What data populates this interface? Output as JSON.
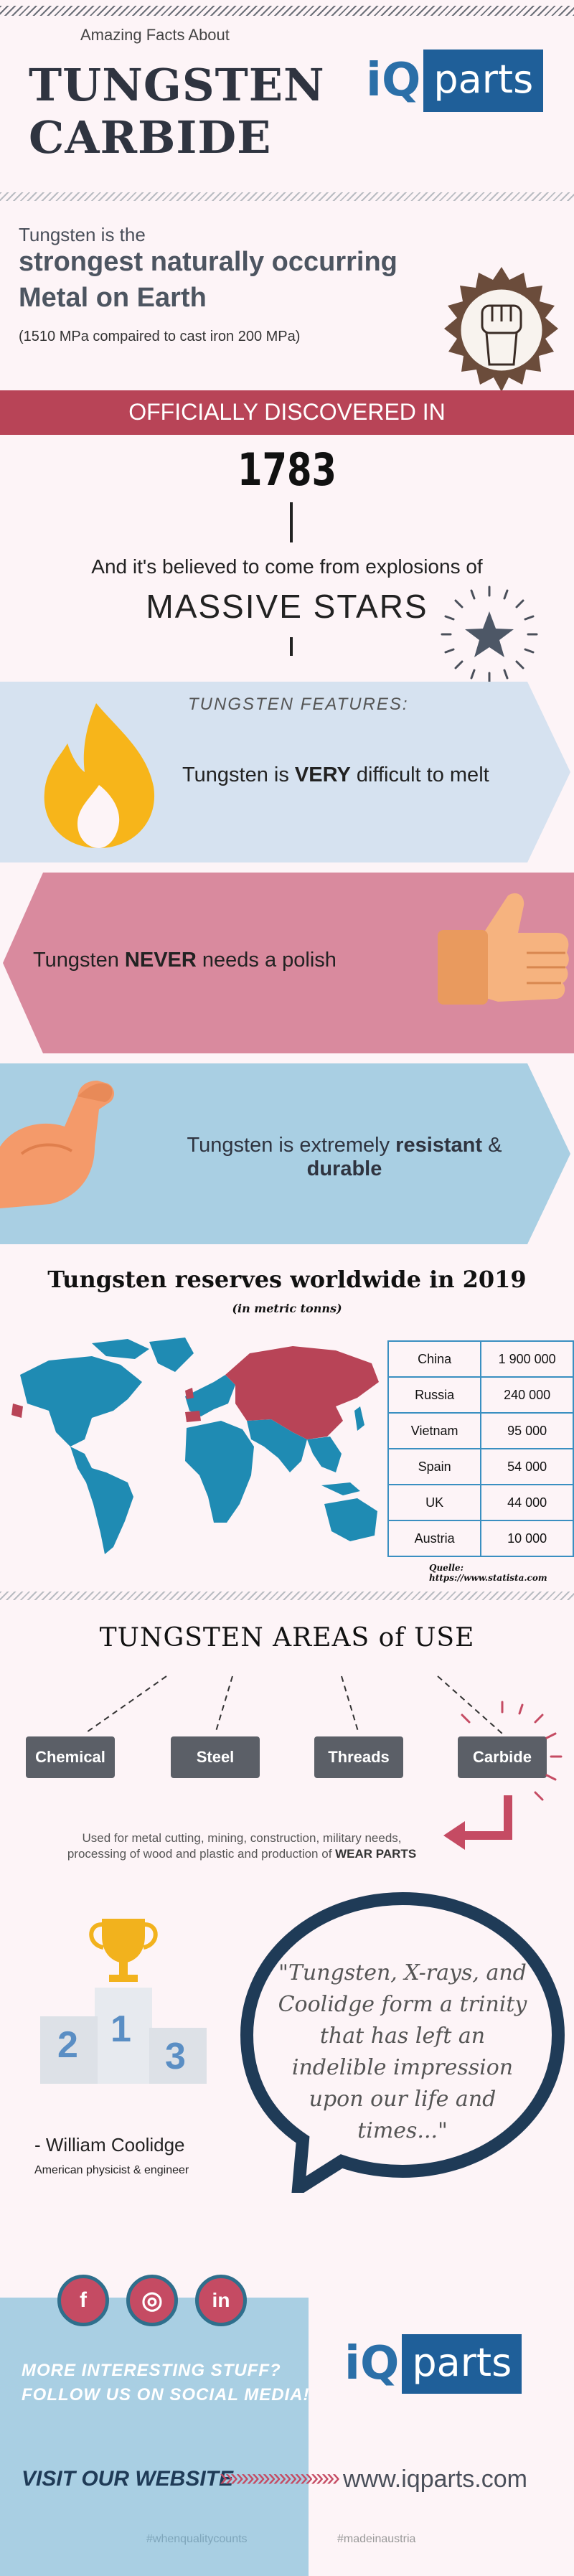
{
  "header": {
    "kicker": "Amazing Facts About",
    "title_line1": "TUNGSTEN",
    "title_line2": "CARBIDE"
  },
  "logo": {
    "iq": "iQ",
    "parts": "parts"
  },
  "strength": {
    "intro": "Tungsten is the",
    "headline1": "strongest naturally occurring",
    "headline2": "Metal on Earth",
    "note": "(1510 MPa compaired to cast iron 200 MPa)"
  },
  "discovery": {
    "banner": "OFFICIALLY DISCOVERED IN",
    "year": "1783",
    "origin_text": "And it's believed to come from explosions of",
    "origin_emphasis": "MASSIVE STARS"
  },
  "features": {
    "title": "TUNGSTEN FEATURES:",
    "f1_pre": "Tungsten is ",
    "f1_bold": "VERY",
    "f1_post": " difficult to melt",
    "f2_pre": "Tungsten ",
    "f2_bold": "NEVER",
    "f2_post": " needs a polish",
    "f3_pre": "Tungsten is extremely ",
    "f3_bold1": "resistant",
    "f3_mid": " &",
    "f3_bold2": "durable"
  },
  "reserves": {
    "title": "Tungsten reserves worldwide in 2019",
    "subtitle": "(in metric tonns)",
    "rows": [
      {
        "country": "China",
        "value": "1 900 000"
      },
      {
        "country": "Russia",
        "value": "240 000"
      },
      {
        "country": "Vietnam",
        "value": "95 000"
      },
      {
        "country": "Spain",
        "value": "54 000"
      },
      {
        "country": "UK",
        "value": "44 000"
      },
      {
        "country": "Austria",
        "value": "10 000"
      }
    ],
    "source": "Quelle: https://www.statista.com"
  },
  "areas": {
    "title": "TUNGSTEN AREAS of USE",
    "items": [
      "Chemical",
      "Steel",
      "Threads",
      "Carbide"
    ],
    "desc_line1": "Used for metal cutting, mining, construction, military needs,",
    "desc_line2_pre": "processing of wood and plastic and production of ",
    "desc_line2_bold": "WEAR PARTS"
  },
  "quote": {
    "podium": [
      "2",
      "1",
      "3"
    ],
    "text": "\"Tungsten, X-rays, and Coolidge form a trinity that has left an indelible impression upon our life and times...\"",
    "author": "- William Coolidge",
    "role": "American physicist & engineer"
  },
  "footer": {
    "social": [
      "f",
      "◎",
      "in"
    ],
    "cta1": "MORE INTERESTING STUFF?",
    "cta2_pre": "FOLLOW US ON ",
    "cta2_bold": "SOCIAL MEDIA!",
    "visit": "VISIT OUR WEBSITE",
    "arrows": "»»»»»»»»»»»",
    "url": "www.iqparts.com",
    "hash1": "#whenqualitycounts",
    "hash2": "#madeinaustria"
  },
  "colors": {
    "accent_red": "#c54b63",
    "banner_red": "#b84457",
    "light_blue": "#d6e2f0",
    "pink": "#d98a9e",
    "sky": "#a9cfe3",
    "dark_navy": "#1f3b57",
    "brand_blue": "#1f5f99"
  }
}
